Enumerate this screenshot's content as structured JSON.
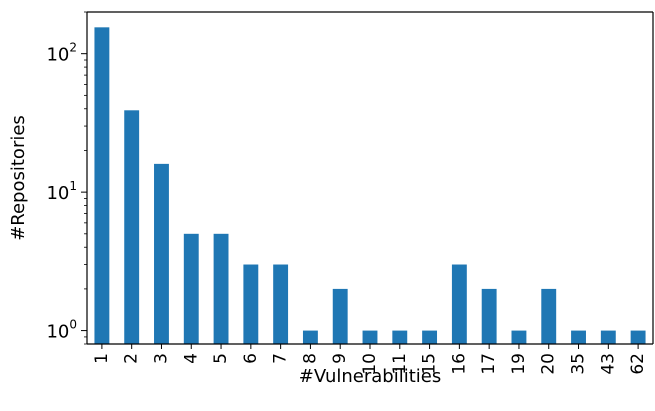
{
  "chart_data": {
    "type": "bar",
    "title": "",
    "xlabel": "#Vulnerabilities",
    "ylabel": "#Repositories",
    "yscale": "log",
    "ylim": [
      0.8,
      200
    ],
    "grid": false,
    "legend": false,
    "bar_color": "#1f77b4",
    "categories": [
      "1",
      "2",
      "3",
      "4",
      "5",
      "6",
      "7",
      "8",
      "9",
      "10",
      "11",
      "15",
      "16",
      "17",
      "19",
      "20",
      "35",
      "43",
      "62"
    ],
    "values": [
      155,
      39,
      16,
      5,
      5,
      3,
      3,
      1,
      2,
      1,
      1,
      1,
      3,
      2,
      1,
      2,
      1,
      1,
      1
    ],
    "y_tick_labels": [
      {
        "value": 1,
        "base": "10",
        "exp": "0"
      },
      {
        "value": 10,
        "base": "10",
        "exp": "1"
      },
      {
        "value": 100,
        "base": "10",
        "exp": "2"
      }
    ]
  }
}
